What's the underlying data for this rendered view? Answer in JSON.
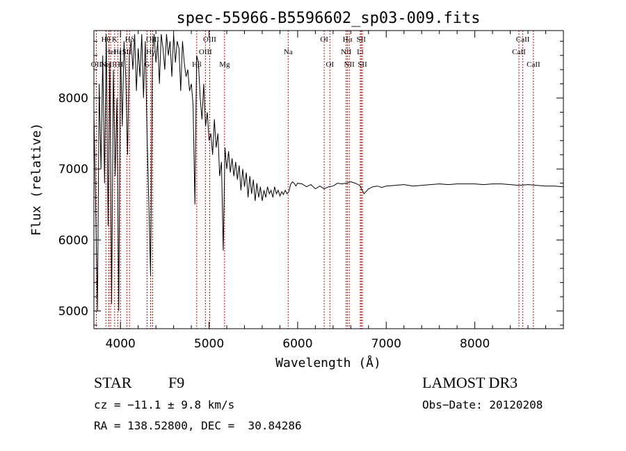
{
  "chart_data": {
    "type": "line",
    "title": "spec-55966-B5596602_sp03-009.fits",
    "xlabel": "Wavelength (Å)",
    "ylabel": "Flux (relative)",
    "xlim": [
      3700,
      9000
    ],
    "ylim": [
      4750,
      8950
    ],
    "x_ticks": [
      4000,
      5000,
      6000,
      7000,
      8000
    ],
    "y_ticks": [
      5000,
      6000,
      7000,
      8000
    ],
    "grid": false,
    "series": [
      {
        "color": "#000000",
        "x": [
          3700,
          3720,
          3740,
          3760,
          3780,
          3800,
          3820,
          3840,
          3860,
          3880,
          3900,
          3920,
          3940,
          3960,
          3980,
          4000,
          4020,
          4040,
          4060,
          4080,
          4100,
          4120,
          4140,
          4160,
          4180,
          4200,
          4220,
          4240,
          4260,
          4280,
          4300,
          4320,
          4340,
          4360,
          4380,
          4400,
          4420,
          4440,
          4460,
          4480,
          4500,
          4520,
          4540,
          4560,
          4580,
          4600,
          4620,
          4640,
          4660,
          4680,
          4700,
          4720,
          4740,
          4760,
          4780,
          4800,
          4820,
          4840,
          4860,
          4880,
          4900,
          4920,
          4940,
          4960,
          4980,
          5000,
          5020,
          5040,
          5060,
          5080,
          5100,
          5120,
          5140,
          5160,
          5180,
          5200,
          5220,
          5240,
          5260,
          5280,
          5300,
          5320,
          5340,
          5360,
          5380,
          5400,
          5420,
          5440,
          5460,
          5480,
          5500,
          5520,
          5540,
          5560,
          5580,
          5600,
          5620,
          5640,
          5660,
          5680,
          5700,
          5720,
          5740,
          5760,
          5780,
          5800,
          5820,
          5840,
          5860,
          5880,
          5900,
          5920,
          5940,
          5960,
          5980,
          6000,
          6050,
          6100,
          6150,
          6200,
          6250,
          6300,
          6350,
          6400,
          6450,
          6500,
          6550,
          6600,
          6650,
          6700,
          6750,
          6800,
          6850,
          6900,
          6950,
          7000,
          7100,
          7200,
          7300,
          7400,
          7500,
          7600,
          7700,
          7800,
          7900,
          8000,
          8100,
          8200,
          8300,
          8400,
          8500,
          8600,
          8700,
          8800,
          8900,
          9000
        ],
        "y": [
          7800,
          6500,
          5000,
          8200,
          7000,
          8600,
          6800,
          8900,
          6200,
          8500,
          5100,
          8400,
          6900,
          8000,
          5000,
          8700,
          7600,
          8800,
          8300,
          7200,
          8600,
          8800,
          8400,
          8900,
          8100,
          8700,
          8300,
          8900,
          8000,
          8800,
          7500,
          6500,
          5500,
          8600,
          8900,
          8500,
          8800,
          8200,
          8900,
          8700,
          8400,
          8900,
          8600,
          8800,
          8300,
          8900,
          8500,
          8800,
          8700,
          8100,
          8800,
          8500,
          8300,
          8400,
          8100,
          8200,
          7900,
          6500,
          8600,
          8500,
          8000,
          7700,
          8200,
          7600,
          7800,
          7400,
          7500,
          7200,
          7700,
          7300,
          7500,
          6900,
          7100,
          5850,
          7300,
          7000,
          7250,
          6950,
          7150,
          6900,
          7100,
          6850,
          7050,
          6700,
          7000,
          6750,
          6950,
          6600,
          6900,
          6650,
          6850,
          6550,
          6800,
          6600,
          6750,
          6550,
          6700,
          6600,
          6750,
          6650,
          6700,
          6600,
          6750,
          6650,
          6700,
          6620,
          6680,
          6640,
          6700,
          6650,
          6680,
          6780,
          6820,
          6800,
          6760,
          6800,
          6790,
          6750,
          6780,
          6720,
          6760,
          6720,
          6750,
          6760,
          6800,
          6790,
          6800,
          6820,
          6800,
          6770,
          6650,
          6720,
          6750,
          6760,
          6740,
          6760,
          6770,
          6780,
          6760,
          6770,
          6780,
          6790,
          6780,
          6790,
          6790,
          6790,
          6780,
          6790,
          6790,
          6780,
          6770,
          6780,
          6770,
          6760,
          6760,
          6750
        ]
      }
    ],
    "lines": [
      {
        "x": 3727,
        "label": "OII",
        "row": 3
      },
      {
        "x": 3835,
        "label": "Hθ",
        "row": 1
      },
      {
        "x": 3869,
        "label": "NeIII",
        "row": 3
      },
      {
        "x": 3889,
        "label": "HeI",
        "row": 2
      },
      {
        "x": 3934,
        "label": "K",
        "row": 1
      },
      {
        "x": 3970,
        "label": "Hε",
        "row": 2
      },
      {
        "x": 4000,
        "label": "H",
        "row": 3
      },
      {
        "x": 4072,
        "label": "SII",
        "row": 2
      },
      {
        "x": 4102,
        "label": "Hδ",
        "row": 1
      },
      {
        "x": 4300,
        "label": "G",
        "row": 3
      },
      {
        "x": 4340,
        "label": "Hγ",
        "row": 2
      },
      {
        "x": 4363,
        "label": "OIII",
        "row": 1
      },
      {
        "x": 4861,
        "label": "Hβ",
        "row": 3
      },
      {
        "x": 4959,
        "label": "OIII",
        "row": 2
      },
      {
        "x": 5007,
        "label": "OIII",
        "row": 1
      },
      {
        "x": 5175,
        "label": "Mg",
        "row": 3
      },
      {
        "x": 5893,
        "label": "Na",
        "row": 2
      },
      {
        "x": 6300,
        "label": "OI",
        "row": 1
      },
      {
        "x": 6364,
        "label": "OI",
        "row": 3
      },
      {
        "x": 6548,
        "label": "NII",
        "row": 2
      },
      {
        "x": 6563,
        "label": "Hα",
        "row": 1
      },
      {
        "x": 6583,
        "label": "NII",
        "row": 3
      },
      {
        "x": 6707,
        "label": "Li",
        "row": 2
      },
      {
        "x": 6717,
        "label": "SII",
        "row": 1
      },
      {
        "x": 6731,
        "label": "SII",
        "row": 3
      },
      {
        "x": 8498,
        "label": "CaII",
        "row": 2
      },
      {
        "x": 8542,
        "label": "CaII",
        "row": 1
      },
      {
        "x": 8662,
        "label": "CaII",
        "row": 3
      }
    ]
  },
  "info": {
    "class": "STAR",
    "subclass": "F9",
    "survey": "LAMOST DR3",
    "cz": "cz = −11.1 ± 9.8 km/s",
    "obs_date": "Obs−Date: 20120208",
    "coords": "RA = 138.52800, DEC =  30.84286"
  },
  "colors": {
    "spectrum": "#000000",
    "line_markers": "#cc0000"
  }
}
